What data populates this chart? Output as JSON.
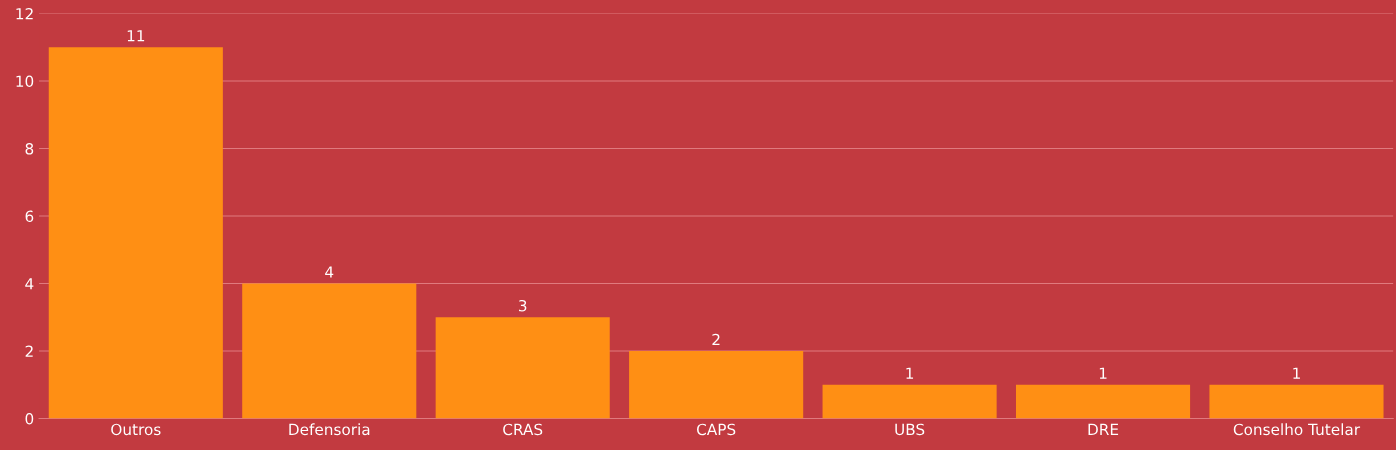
{
  "chart_data": {
    "type": "bar",
    "categories": [
      "Outros",
      "Defensoria",
      "CRAS",
      "CAPS",
      "UBS",
      "DRE",
      "Conselho Tutelar"
    ],
    "values": [
      11,
      4,
      3,
      2,
      1,
      1,
      1
    ],
    "color": "#ff8f14",
    "ylim": [
      0,
      12
    ],
    "yticks": [
      0,
      2,
      4,
      6,
      8,
      10,
      12
    ],
    "grid": "y",
    "data_labels": true
  }
}
